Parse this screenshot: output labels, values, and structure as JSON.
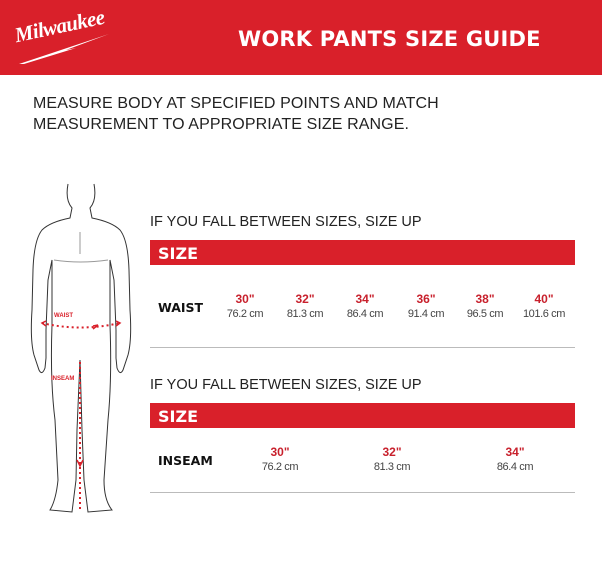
{
  "header": {
    "brand": "Milwaukee",
    "title": "WORK PANTS SIZE GUIDE"
  },
  "instructions": [
    "MEASURE BODY AT SPECIFIED POINTS AND MATCH",
    "MEASUREMENT TO APPROPRIATE SIZE RANGE."
  ],
  "figure": {
    "waist_label": "WAIST",
    "inseam_label": "INSEAM"
  },
  "waist_table": {
    "note": "IF YOU FALL BETWEEN SIZES, SIZE UP",
    "header": "SIZE",
    "row_label": "WAIST",
    "sizes": [
      {
        "in": "30\"",
        "cm": "76.2 cm"
      },
      {
        "in": "32\"",
        "cm": "81.3 cm"
      },
      {
        "in": "34\"",
        "cm": "86.4 cm"
      },
      {
        "in": "36\"",
        "cm": "91.4 cm"
      },
      {
        "in": "38\"",
        "cm": "96.5 cm"
      },
      {
        "in": "40\"",
        "cm": "101.6 cm"
      }
    ]
  },
  "inseam_table": {
    "note": "IF YOU FALL BETWEEN SIZES, SIZE UP",
    "header": "SIZE",
    "row_label": "INSEAM",
    "sizes": [
      {
        "in": "30\"",
        "cm": "76.2 cm"
      },
      {
        "in": "32\"",
        "cm": "81.3 cm"
      },
      {
        "in": "34\"",
        "cm": "86.4 cm"
      }
    ]
  },
  "colors": {
    "brand_red": "#d9202a",
    "size_red": "#c8202c"
  }
}
